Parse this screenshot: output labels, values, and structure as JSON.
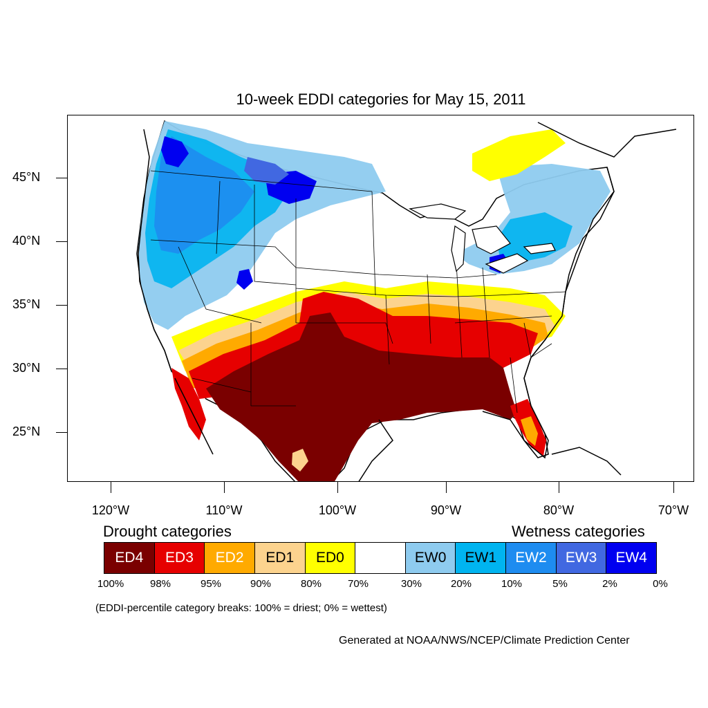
{
  "title": "10-week EDDI categories for May 15, 2011",
  "lat_labels": [
    "45°N",
    "40°N",
    "35°N",
    "30°N",
    "25°N"
  ],
  "lon_labels": [
    "120°W",
    "110°W",
    "100°W",
    "90°W",
    "80°W",
    "70°W"
  ],
  "legend": {
    "drought_heading": "Drought categories",
    "wetness_heading": "Wetness categories",
    "categories": [
      {
        "label": "ED4",
        "color": "#7a0000",
        "text_color": "#ffffff"
      },
      {
        "label": "ED3",
        "color": "#e60000",
        "text_color": "#ffffff"
      },
      {
        "label": "ED2",
        "color": "#ffaa00",
        "text_color": "#ffffff"
      },
      {
        "label": "ED1",
        "color": "#fcd38e",
        "text_color": "#000000"
      },
      {
        "label": "ED0",
        "color": "#ffff00",
        "text_color": "#000000"
      },
      {
        "label": "",
        "color": "#ffffff",
        "text_color": "#000000"
      },
      {
        "label": "EW0",
        "color": "#8ecbef",
        "text_color": "#000000"
      },
      {
        "label": "EW1",
        "color": "#00b4f0",
        "text_color": "#000000"
      },
      {
        "label": "EW2",
        "color": "#1e8cf0",
        "text_color": "#ffffff"
      },
      {
        "label": "EW3",
        "color": "#4168e1",
        "text_color": "#ffffff"
      },
      {
        "label": "EW4",
        "color": "#0000f0",
        "text_color": "#ffffff"
      }
    ],
    "breaks": [
      "100%",
      "98%",
      "95%",
      "90%",
      "80%",
      "70%",
      "30%",
      "20%",
      "10%",
      "5%",
      "2%",
      "0%"
    ]
  },
  "note": "(EDDI-percentile category breaks: 100% = driest; 0% = wettest)",
  "credit": "Generated at NOAA/NWS/NCEP/Climate Prediction Center"
}
